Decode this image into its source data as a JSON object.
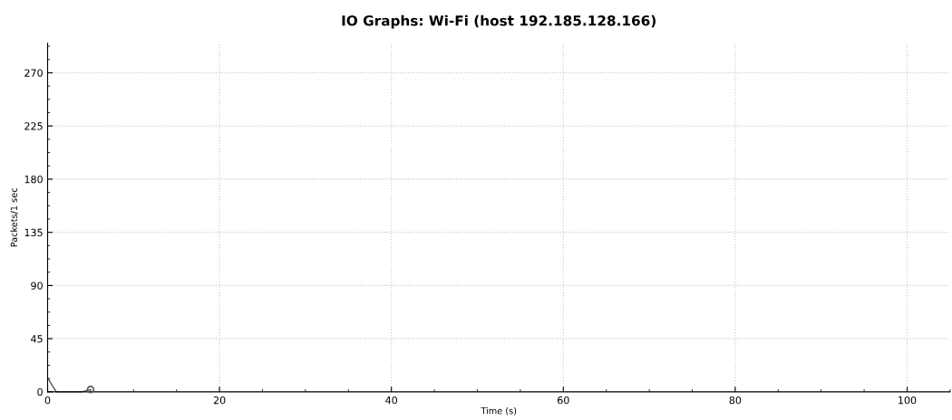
{
  "chart_data": {
    "type": "line",
    "title": "IO Graphs: Wi-Fi (host 192.185.128.166)",
    "xlabel": "Time (s)",
    "ylabel": "Packets/1 sec",
    "xlim": [
      0,
      105
    ],
    "xticks": [
      0,
      20,
      40,
      60,
      80,
      100
    ],
    "ylim": [
      0,
      295
    ],
    "yticks": [
      0,
      45,
      90,
      135,
      180,
      225,
      270
    ],
    "grid": true,
    "series": [
      {
        "color": "#555555",
        "x": [
          0,
          1,
          2,
          3,
          4,
          5
        ],
        "values": [
          12,
          0,
          0,
          0,
          0,
          2
        ],
        "marker": "none"
      },
      {
        "type": "scatter",
        "color": "#555555",
        "x": [
          5
        ],
        "values": [
          2
        ],
        "marker": "circle"
      }
    ]
  }
}
